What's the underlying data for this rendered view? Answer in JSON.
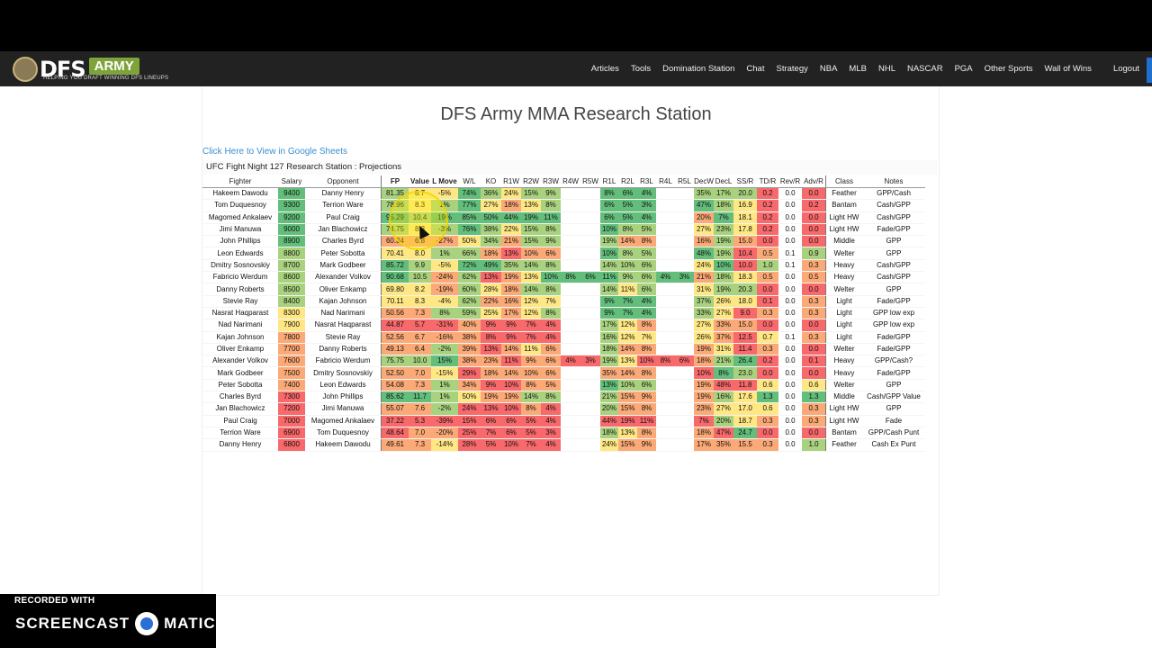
{
  "brand": {
    "name": "DFS",
    "army": "ARMY",
    "tagline": "HELPING YOU DRAFT WINNING DFS LINEUPS"
  },
  "nav": [
    "Articles",
    "Tools",
    "Domination Station",
    "Chat",
    "Strategy",
    "NBA",
    "MLB",
    "NHL",
    "NASCAR",
    "PGA",
    "Other Sports",
    "Wall of Wins"
  ],
  "logout": "Logout",
  "page_title": "DFS Army MMA Research Station",
  "sheets_link": "Click Here to View in Google Sheets",
  "sheet_title": "UFC Fight Night 127 Research Station : Projections",
  "columns": [
    "Fighter",
    "Salary",
    "Opponent",
    "FP",
    "Value",
    "L Move",
    "W/L",
    "KO",
    "R1W",
    "R2W",
    "R3W",
    "R4W",
    "R5W",
    "R1L",
    "R2L",
    "R3L",
    "R4L",
    "R5L",
    "DecW",
    "DecL",
    "SS/R",
    "TD/R",
    "Rev/R",
    "Adv/R",
    "Class",
    "Notes"
  ],
  "rows": [
    [
      "Hakeem Dawodu",
      "9400",
      "Danny Henry",
      "81.35",
      "8.7",
      "-5%",
      "74%",
      "36%",
      "24%",
      "15%",
      "9%",
      "",
      "",
      "8%",
      "6%",
      "4%",
      "",
      "",
      "35%",
      "17%",
      "20.0",
      "0.2",
      "0.0",
      "0.0",
      "Feather",
      "GPP/Cash"
    ],
    [
      "Tom Duquesnoy",
      "9300",
      "Terrion Ware",
      "78.96",
      "8.3",
      "1%",
      "77%",
      "27%",
      "18%",
      "13%",
      "8%",
      "",
      "",
      "6%",
      "5%",
      "3%",
      "",
      "",
      "47%",
      "18%",
      "16.9",
      "0.2",
      "0.0",
      "0.2",
      "Bantam",
      "Cash/GPP"
    ],
    [
      "Magomed Ankalaev",
      "9200",
      "Paul Craig",
      "95.29",
      "10.4",
      "19%",
      "85%",
      "50%",
      "44%",
      "19%",
      "11%",
      "",
      "",
      "6%",
      "5%",
      "4%",
      "",
      "",
      "20%",
      "7%",
      "18.1",
      "0.2",
      "0.0",
      "0.0",
      "Light HW",
      "Cash/GPP"
    ],
    [
      "Jimi Manuwa",
      "9000",
      "Jan Blachowicz",
      "74.75",
      "8.3",
      "-3%",
      "76%",
      "38%",
      "22%",
      "15%",
      "8%",
      "",
      "",
      "10%",
      "8%",
      "5%",
      "",
      "",
      "27%",
      "23%",
      "17.8",
      "0.2",
      "0.0",
      "0.0",
      "Light HW",
      "Fade/GPP"
    ],
    [
      "John Phillips",
      "8900",
      "Charles Byrd",
      "60.34",
      "6.8",
      "-27%",
      "50%",
      "34%",
      "21%",
      "15%",
      "9%",
      "",
      "",
      "19%",
      "14%",
      "8%",
      "",
      "",
      "16%",
      "19%",
      "15.0",
      "0.0",
      "0.0",
      "0.0",
      "Middle",
      "GPP"
    ],
    [
      "Leon Edwards",
      "8800",
      "Peter Sobotta",
      "70.41",
      "8.0",
      "1%",
      "66%",
      "18%",
      "13%",
      "10%",
      "6%",
      "",
      "",
      "10%",
      "8%",
      "5%",
      "",
      "",
      "48%",
      "19%",
      "10.4",
      "0.5",
      "0.1",
      "0.9",
      "Welter",
      "GPP"
    ],
    [
      "Dmitry Sosnovskiy",
      "8700",
      "Mark Godbeer",
      "85.72",
      "9.9",
      "-5%",
      "72%",
      "49%",
      "35%",
      "14%",
      "8%",
      "",
      "",
      "14%",
      "10%",
      "6%",
      "",
      "",
      "24%",
      "10%",
      "10.0",
      "1.0",
      "0.1",
      "0.3",
      "Heavy",
      "Cash/GPP"
    ],
    [
      "Fabricio Werdum",
      "8600",
      "Alexander Volkov",
      "90.68",
      "10.5",
      "-24%",
      "62%",
      "13%",
      "19%",
      "13%",
      "10%",
      "8%",
      "6%",
      "11%",
      "9%",
      "6%",
      "4%",
      "3%",
      "21%",
      "18%",
      "18.3",
      "0.5",
      "0.0",
      "0.5",
      "Heavy",
      "Cash/GPP"
    ],
    [
      "Danny Roberts",
      "8500",
      "Oliver Enkamp",
      "69.80",
      "8.2",
      "-19%",
      "60%",
      "28%",
      "18%",
      "14%",
      "8%",
      "",
      "",
      "14%",
      "11%",
      "6%",
      "",
      "",
      "31%",
      "19%",
      "20.3",
      "0.0",
      "0.0",
      "0.0",
      "Welter",
      "GPP"
    ],
    [
      "Stevie Ray",
      "8400",
      "Kajan Johnson",
      "70.11",
      "8.3",
      "-4%",
      "62%",
      "22%",
      "16%",
      "12%",
      "7%",
      "",
      "",
      "9%",
      "7%",
      "4%",
      "",
      "",
      "37%",
      "26%",
      "18.0",
      "0.1",
      "0.0",
      "0.3",
      "Light",
      "Fade/GPP"
    ],
    [
      "Nasrat Haqparast",
      "8300",
      "Nad Narimani",
      "50.56",
      "7.3",
      "8%",
      "59%",
      "25%",
      "17%",
      "12%",
      "8%",
      "",
      "",
      "9%",
      "7%",
      "4%",
      "",
      "",
      "33%",
      "27%",
      "9.0",
      "0.3",
      "0.0",
      "0.3",
      "Light",
      "GPP low exp"
    ],
    [
      "Nad Narimani",
      "7900",
      "Nasrat Haqparast",
      "44.87",
      "5.7",
      "-31%",
      "40%",
      "9%",
      "9%",
      "7%",
      "4%",
      "",
      "",
      "17%",
      "12%",
      "8%",
      "",
      "",
      "27%",
      "33%",
      "15.0",
      "0.0",
      "0.0",
      "0.0",
      "Light",
      "GPP low exp"
    ],
    [
      "Kajan Johnson",
      "7800",
      "Stevie Ray",
      "52.56",
      "6.7",
      "-16%",
      "38%",
      "8%",
      "9%",
      "7%",
      "4%",
      "",
      "",
      "16%",
      "12%",
      "7%",
      "",
      "",
      "26%",
      "37%",
      "12.5",
      "0.7",
      "0.1",
      "0.3",
      "Light",
      "Fade/GPP"
    ],
    [
      "Oliver Enkamp",
      "7700",
      "Danny Roberts",
      "49.13",
      "6.4",
      "-2%",
      "39%",
      "13%",
      "14%",
      "11%",
      "6%",
      "",
      "",
      "18%",
      "14%",
      "8%",
      "",
      "",
      "19%",
      "31%",
      "11.4",
      "0.3",
      "0.0",
      "0.0",
      "Welter",
      "Fade/GPP"
    ],
    [
      "Alexander Volkov",
      "7600",
      "Fabricio Werdum",
      "75.75",
      "10.0",
      "15%",
      "38%",
      "23%",
      "11%",
      "9%",
      "6%",
      "4%",
      "3%",
      "19%",
      "13%",
      "10%",
      "8%",
      "6%",
      "18%",
      "21%",
      "26.4",
      "0.2",
      "0.0",
      "0.1",
      "Heavy",
      "GPP/Cash?"
    ],
    [
      "Mark Godbeer",
      "7500",
      "Dmitry Sosnovskiy",
      "52.50",
      "7.0",
      "-15%",
      "29%",
      "18%",
      "14%",
      "10%",
      "6%",
      "",
      "",
      "35%",
      "14%",
      "8%",
      "",
      "",
      "10%",
      "8%",
      "23.0",
      "0.0",
      "0.0",
      "0.0",
      "Heavy",
      "Fade/GPP"
    ],
    [
      "Peter Sobotta",
      "7400",
      "Leon Edwards",
      "54.08",
      "7.3",
      "1%",
      "34%",
      "9%",
      "10%",
      "8%",
      "5%",
      "",
      "",
      "13%",
      "10%",
      "6%",
      "",
      "",
      "19%",
      "48%",
      "11.8",
      "0.6",
      "0.0",
      "0.6",
      "Welter",
      "GPP"
    ],
    [
      "Charles Byrd",
      "7300",
      "John Phillips",
      "85.62",
      "11.7",
      "1%",
      "50%",
      "19%",
      "19%",
      "14%",
      "8%",
      "",
      "",
      "21%",
      "15%",
      "9%",
      "",
      "",
      "19%",
      "16%",
      "17.6",
      "1.3",
      "0.0",
      "1.3",
      "Middle",
      "Cash/GPP Value"
    ],
    [
      "Jan Blachowicz",
      "7200",
      "Jimi Manuwa",
      "55.07",
      "7.6",
      "-2%",
      "24%",
      "13%",
      "10%",
      "8%",
      "4%",
      "",
      "",
      "20%",
      "15%",
      "8%",
      "",
      "",
      "23%",
      "27%",
      "17.0",
      "0.6",
      "0.0",
      "0.3",
      "Light HW",
      "GPP"
    ],
    [
      "Paul Craig",
      "7000",
      "Magomed Ankalaev",
      "37.22",
      "5.3",
      "-39%",
      "15%",
      "6%",
      "6%",
      "5%",
      "4%",
      "",
      "",
      "44%",
      "19%",
      "11%",
      "",
      "",
      "7%",
      "20%",
      "18.7",
      "0.3",
      "0.0",
      "0.3",
      "Light HW",
      "Fade"
    ],
    [
      "Terrion Ware",
      "6900",
      "Tom Duquesnoy",
      "48.64",
      "7.0",
      "-20%",
      "25%",
      "7%",
      "6%",
      "5%",
      "3%",
      "",
      "",
      "18%",
      "13%",
      "8%",
      "",
      "",
      "18%",
      "47%",
      "24.7",
      "0.0",
      "0.0",
      "0.0",
      "Bantam",
      "GPP/Cash Punt"
    ],
    [
      "Danny Henry",
      "6800",
      "Hakeem Dawodu",
      "49.61",
      "7.3",
      "-14%",
      "28%",
      "5%",
      "10%",
      "7%",
      "4%",
      "",
      "",
      "24%",
      "15%",
      "9%",
      "",
      "",
      "17%",
      "35%",
      "15.5",
      "0.3",
      "0.0",
      "1.0",
      "Feather",
      "Cash Ex Punt"
    ]
  ],
  "watermark": {
    "line1": "RECORDED WITH",
    "line2a": "SCREENCAST",
    "line2b": "MATIC"
  }
}
